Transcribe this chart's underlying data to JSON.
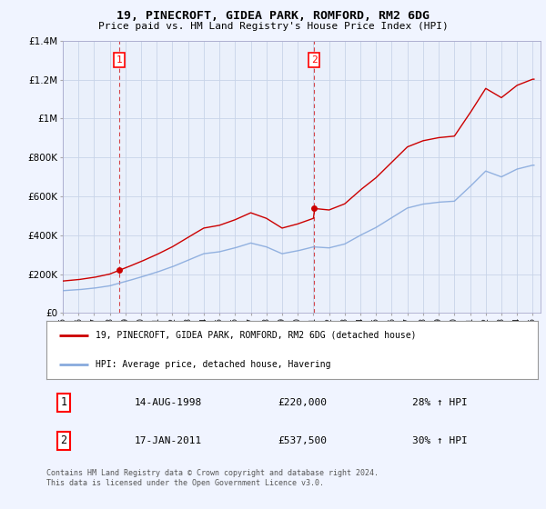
{
  "title": "19, PINECROFT, GIDEA PARK, ROMFORD, RM2 6DG",
  "subtitle": "Price paid vs. HM Land Registry's House Price Index (HPI)",
  "background_color": "#f0f4ff",
  "plot_bg_color": "#eaf0fb",
  "legend_line1": "19, PINECROFT, GIDEA PARK, ROMFORD, RM2 6DG (detached house)",
  "legend_line2": "HPI: Average price, detached house, Havering",
  "footer": "Contains HM Land Registry data © Crown copyright and database right 2024.\nThis data is licensed under the Open Government Licence v3.0.",
  "sale1_date": "14-AUG-1998",
  "sale1_price": 220000,
  "sale1_hpi": "28% ↑ HPI",
  "sale1_year": 1998.62,
  "sale2_date": "17-JAN-2011",
  "sale2_price": 537500,
  "sale2_hpi": "30% ↑ HPI",
  "sale2_year": 2011.04,
  "red_color": "#cc0000",
  "blue_color": "#88aadd",
  "dashed_color": "#cc0000",
  "ylim_max": 1400000,
  "xlim_min": 1995,
  "xlim_max": 2025.5
}
